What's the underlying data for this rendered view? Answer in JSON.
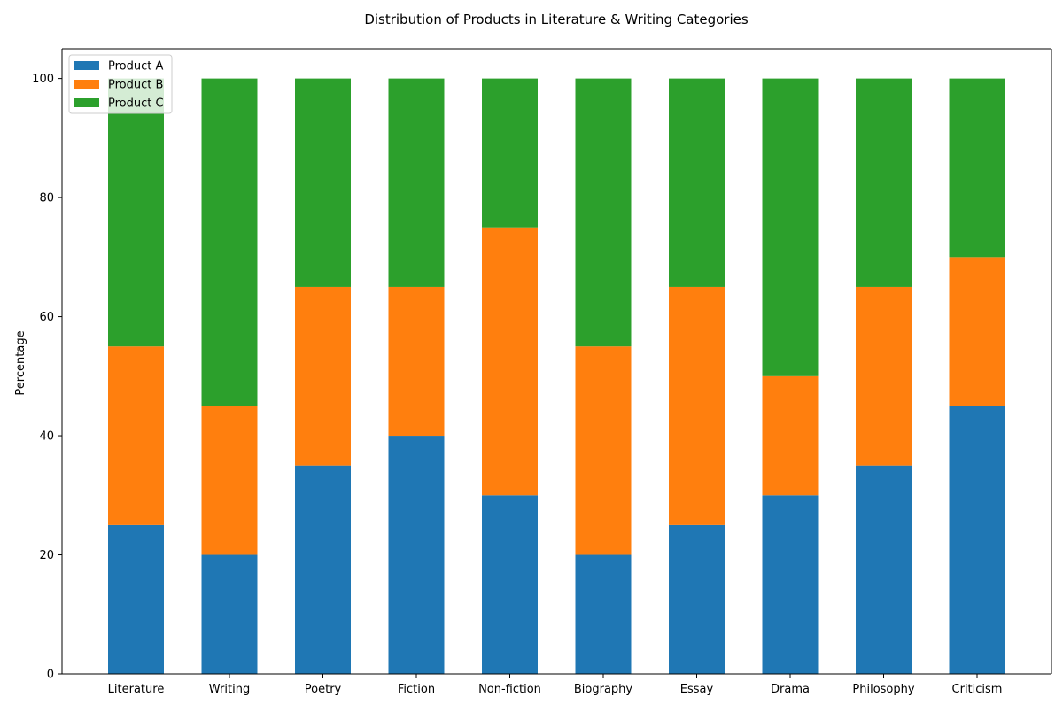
{
  "chart_data": {
    "type": "bar",
    "stacked": true,
    "title": "Distribution of Products in Literature & Writing Categories",
    "xlabel": "",
    "ylabel": "Percentage",
    "ylim": [
      0,
      105
    ],
    "yticks": [
      0,
      20,
      40,
      60,
      80,
      100
    ],
    "grid": false,
    "legend_position": "top-left",
    "categories": [
      "Literature",
      "Writing",
      "Poetry",
      "Fiction",
      "Non-fiction",
      "Biography",
      "Essay",
      "Drama",
      "Philosophy",
      "Criticism"
    ],
    "series": [
      {
        "name": "Product A",
        "color": "#1f77b4",
        "values": [
          25,
          20,
          35,
          40,
          30,
          20,
          25,
          30,
          35,
          45
        ]
      },
      {
        "name": "Product B",
        "color": "#ff7f0e",
        "values": [
          30,
          25,
          30,
          25,
          45,
          35,
          40,
          20,
          30,
          25
        ]
      },
      {
        "name": "Product C",
        "color": "#2ca02c",
        "values": [
          45,
          55,
          35,
          35,
          25,
          45,
          35,
          50,
          35,
          30
        ]
      }
    ]
  }
}
